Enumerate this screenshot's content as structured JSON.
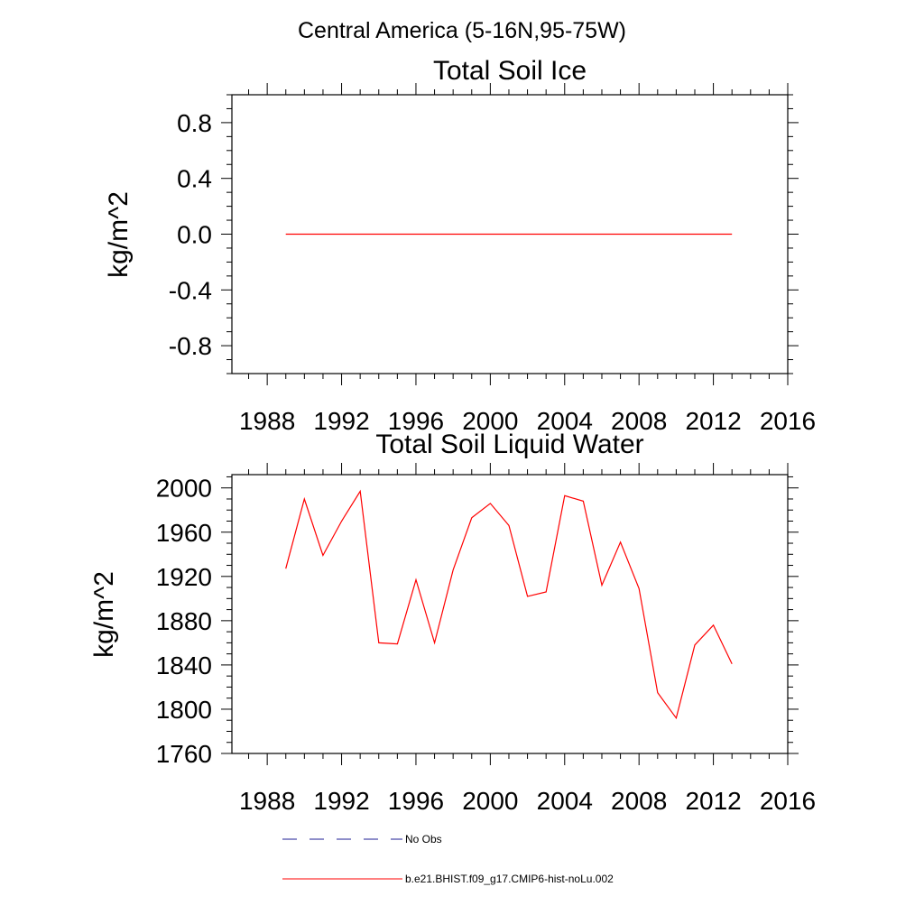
{
  "figure": {
    "title": "Central America (5-16N,95-75W)"
  },
  "chart_data": [
    {
      "type": "line",
      "title": "Total Soil Ice",
      "xlabel": "",
      "ylabel": "kg/m^2",
      "xlim": [
        1986.1,
        2016
      ],
      "ylim": [
        -1.0,
        1.0
      ],
      "xticks": [
        1988,
        1992,
        1996,
        2000,
        2004,
        2008,
        2012,
        2016
      ],
      "xtick_labels": [
        "1988",
        "1992",
        "1996",
        "2000",
        "2004",
        "2008",
        "2012",
        "2016"
      ],
      "yticks": [
        0.8,
        0.4,
        0.0,
        -0.4,
        -0.8
      ],
      "ytick_labels": [
        "0.8",
        "0.4",
        "0.0",
        "-0.4",
        "-0.8"
      ],
      "grid": false,
      "series": [
        {
          "name": "b.e21.BHIST.f09_g17.CMIP6-hist-noLu.002",
          "color": "#ff0000",
          "x": [
            1989,
            1990,
            1991,
            1992,
            1993,
            1994,
            1995,
            1996,
            1997,
            1998,
            1999,
            2000,
            2001,
            2002,
            2003,
            2004,
            2005,
            2006,
            2007,
            2008,
            2009,
            2010,
            2011,
            2012,
            2013
          ],
          "y": [
            0,
            0,
            0,
            0,
            0,
            0,
            0,
            0,
            0,
            0,
            0,
            0,
            0,
            0,
            0,
            0,
            0,
            0,
            0,
            0,
            0,
            0,
            0,
            0,
            0
          ]
        }
      ]
    },
    {
      "type": "line",
      "title": "Total Soil Liquid Water",
      "xlabel": "",
      "ylabel": "kg/m^2",
      "xlim": [
        1986.1,
        2016
      ],
      "ylim": [
        1760,
        2012
      ],
      "xticks": [
        1988,
        1992,
        1996,
        2000,
        2004,
        2008,
        2012,
        2016
      ],
      "xtick_labels": [
        "1988",
        "1992",
        "1996",
        "2000",
        "2004",
        "2008",
        "2012",
        "2016"
      ],
      "yticks": [
        2000,
        1960,
        1920,
        1880,
        1840,
        1800,
        1760
      ],
      "ytick_labels": [
        "2000",
        "1960",
        "1920",
        "1880",
        "1840",
        "1800",
        "1760"
      ],
      "grid": false,
      "series": [
        {
          "name": "b.e21.BHIST.f09_g17.CMIP6-hist-noLu.002",
          "color": "#ff0000",
          "x": [
            1989,
            1990,
            1991,
            1992,
            1993,
            1994,
            1995,
            1996,
            1997,
            1998,
            1999,
            2000,
            2001,
            2002,
            2003,
            2004,
            2005,
            2006,
            2007,
            2008,
            2009,
            2010,
            2011,
            2012,
            2013
          ],
          "y": [
            1927,
            1990,
            1939,
            1970,
            1997,
            1860,
            1859,
            1917,
            1860,
            1926,
            1973,
            1986,
            1966,
            1902,
            1906,
            1993,
            1988,
            1912,
            1951,
            1909,
            1815,
            1792,
            1858,
            1876,
            1841
          ]
        }
      ]
    }
  ],
  "legend": {
    "placement": "bottom-center",
    "entries": [
      {
        "label": "No Obs",
        "color": "#1e1e96",
        "style": "dashed"
      },
      {
        "label": "b.e21.BHIST.f09_g17.CMIP6-hist-noLu.002",
        "color": "#ff0000",
        "style": "solid"
      }
    ]
  }
}
